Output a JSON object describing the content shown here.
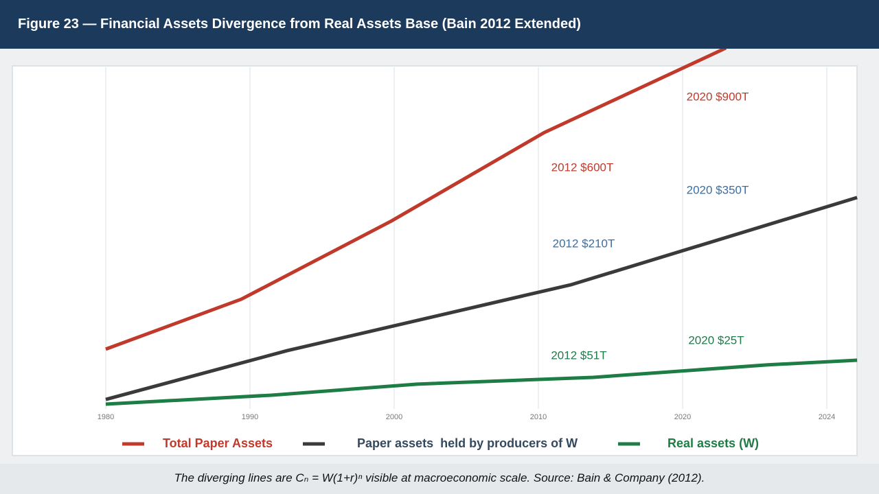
{
  "chart_data": {
    "type": "line",
    "title": "Figure 23 — Financial Assets Divergence from Real Assets Base (Bain 2012 Extended)",
    "caption": "The diverging lines are Cₙ = W(1+r)ⁿ visible at macroeconomic scale. Source: Bain & Company (2012).",
    "categories": [
      "1980",
      "1990",
      "2000",
      "2010",
      "2020",
      "2024"
    ],
    "ylim": [
      0,
      1000
    ],
    "grid": true,
    "series": [
      {
        "name": "Total Paper Assets",
        "color": "#c0392b",
        "label_color": "#c0392b",
        "x": [
          0,
          0.94,
          1.98,
          3.04,
          4.3
        ],
        "values": [
          156,
          296,
          515,
          763,
          1000
        ]
      },
      {
        "name": "Paper assets  held by producers of W",
        "color": "#3a3a3a",
        "label_color": "#34495e",
        "x": [
          0,
          1.26,
          3.23,
          5.21
        ],
        "values": [
          15,
          152,
          337,
          581
        ]
      },
      {
        "name": "Real assets (W)",
        "color": "#1e7d45",
        "label_color": "#1e7d45",
        "x": [
          0,
          1.15,
          2.16,
          3.38,
          4.59,
          5.21
        ],
        "values": [
          2,
          27,
          58,
          77,
          112,
          125
        ]
      }
    ],
    "annotations": [
      {
        "text": "2020 $900T",
        "color": "#c0392b"
      },
      {
        "text": "2012 $600T",
        "color": "#c0392b"
      },
      {
        "text": "2020 $350T",
        "color": "#3a6ea5"
      },
      {
        "text": "2012 $210T",
        "color": "#3a6ea5"
      },
      {
        "text": "2012 $51T",
        "color": "#1e7b4a"
      },
      {
        "text": "2020 $25T",
        "color": "#1e7b4a"
      }
    ]
  }
}
